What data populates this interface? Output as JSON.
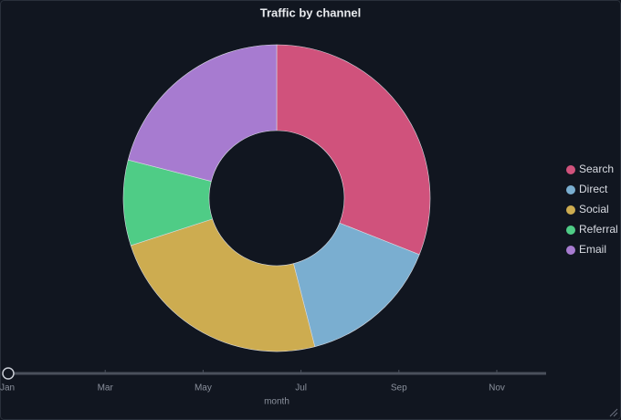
{
  "chart_data": {
    "type": "pie",
    "title": "Traffic by channel",
    "categories": [
      "Search",
      "Direct",
      "Social",
      "Referral",
      "Email"
    ],
    "values": [
      31,
      15,
      24,
      9,
      21
    ],
    "colors": [
      "#d0527c",
      "#7aaed0",
      "#cdac50",
      "#4fcc86",
      "#a77bd0"
    ],
    "legend": "right",
    "slider": {
      "ticks": [
        "Jan",
        "Mar",
        "May",
        "Jul",
        "Sep",
        "Nov"
      ],
      "label": "month"
    }
  }
}
